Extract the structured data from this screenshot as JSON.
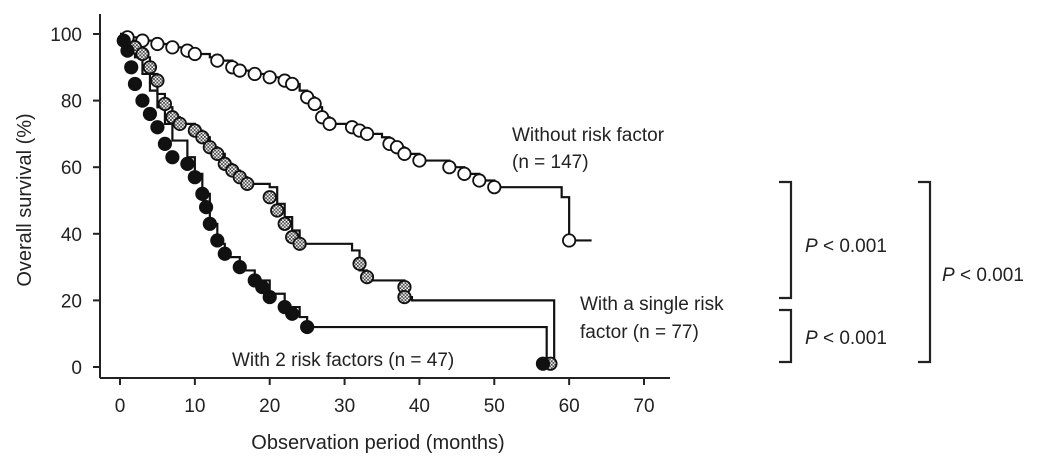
{
  "chart_data": {
    "type": "line",
    "step": true,
    "xlabel": "Observation period (months)",
    "ylabel": "Overall survival (%)",
    "xlim": [
      0,
      70
    ],
    "ylim": [
      0,
      100
    ],
    "xticks": [
      "0",
      "10",
      "20",
      "30",
      "40",
      "50",
      "60",
      "70"
    ],
    "yticks": [
      "0",
      "20",
      "40",
      "60",
      "80",
      "100"
    ],
    "grid": false,
    "series": [
      {
        "marker": "open-circle",
        "x": [
          0,
          1,
          2,
          3,
          4,
          5,
          6,
          7,
          9,
          10,
          12,
          13,
          15,
          16,
          18,
          20,
          22,
          23,
          24,
          25,
          26,
          27,
          28,
          30,
          31,
          32,
          33,
          35,
          36,
          37,
          38,
          40,
          44,
          46,
          48,
          50,
          59,
          60,
          63
        ],
        "y": [
          100,
          99,
          99,
          98,
          98,
          97,
          97,
          96,
          95,
          94,
          93,
          92,
          90,
          89,
          88,
          87,
          86,
          85,
          83,
          81,
          78,
          75,
          73,
          73,
          72,
          71,
          70,
          69,
          67,
          66,
          64,
          62,
          60,
          58,
          56,
          54,
          51,
          38,
          38
        ],
        "censored": [
          [
            1,
            99
          ],
          [
            3,
            98
          ],
          [
            5,
            97
          ],
          [
            7,
            96
          ],
          [
            9,
            95
          ],
          [
            10,
            94
          ],
          [
            13,
            92
          ],
          [
            15,
            90
          ],
          [
            16,
            89
          ],
          [
            18,
            88
          ],
          [
            20,
            87
          ],
          [
            22,
            86
          ],
          [
            23,
            85
          ],
          [
            25,
            81
          ],
          [
            26,
            79
          ],
          [
            27,
            75
          ],
          [
            28,
            73
          ],
          [
            31,
            72
          ],
          [
            32,
            71
          ],
          [
            33,
            70
          ],
          [
            36,
            67
          ],
          [
            37,
            66
          ],
          [
            38,
            64
          ],
          [
            40,
            62
          ],
          [
            44,
            60
          ],
          [
            46,
            58
          ],
          [
            48,
            56
          ],
          [
            50,
            54
          ],
          [
            60,
            38
          ]
        ]
      },
      {
        "marker": "hatched-circle",
        "x": [
          0,
          1,
          2,
          3,
          4,
          5,
          6,
          7,
          8,
          10,
          11,
          12,
          13,
          14,
          15,
          16,
          17,
          20,
          21,
          22,
          23,
          24,
          31,
          32,
          33,
          38,
          39,
          58
        ],
        "y": [
          100,
          98,
          96,
          93,
          88,
          82,
          78,
          75,
          73,
          71,
          69,
          66,
          64,
          61,
          59,
          57,
          55,
          54,
          49,
          45,
          41,
          37,
          35,
          29,
          26,
          21,
          20,
          0
        ],
        "censored": [
          [
            2,
            96
          ],
          [
            3,
            94
          ],
          [
            4,
            90
          ],
          [
            5,
            86
          ],
          [
            6,
            79
          ],
          [
            7,
            75
          ],
          [
            8,
            73
          ],
          [
            10,
            71
          ],
          [
            11,
            69
          ],
          [
            12,
            66
          ],
          [
            13,
            64
          ],
          [
            14,
            61
          ],
          [
            15,
            59
          ],
          [
            16,
            57
          ],
          [
            17,
            55
          ],
          [
            20,
            51
          ],
          [
            21,
            47
          ],
          [
            22,
            43
          ],
          [
            23,
            39
          ],
          [
            24,
            37
          ],
          [
            32,
            31
          ],
          [
            33,
            27
          ],
          [
            38,
            24
          ],
          [
            38,
            21
          ],
          [
            57.5,
            1
          ]
        ]
      },
      {
        "marker": "filled-circle",
        "x": [
          0,
          1,
          2,
          3,
          4,
          5,
          6,
          7,
          9,
          10,
          11,
          12,
          13,
          14,
          16,
          18,
          20,
          22,
          24,
          25,
          56,
          57
        ],
        "y": [
          100,
          97,
          93,
          88,
          83,
          78,
          73,
          68,
          63,
          58,
          52,
          43,
          37,
          33,
          29,
          26,
          22,
          18,
          15,
          12,
          12,
          0
        ],
        "censored": [
          [
            0.5,
            98
          ],
          [
            1,
            95
          ],
          [
            1.5,
            90
          ],
          [
            2,
            85
          ],
          [
            3,
            80
          ],
          [
            4,
            76
          ],
          [
            5,
            72
          ],
          [
            6,
            67
          ],
          [
            7,
            63
          ],
          [
            9,
            61
          ],
          [
            10,
            57
          ],
          [
            11,
            52
          ],
          [
            11.5,
            48
          ],
          [
            12,
            43
          ],
          [
            13,
            38
          ],
          [
            14,
            34
          ],
          [
            16,
            30
          ],
          [
            18,
            26
          ],
          [
            19,
            24
          ],
          [
            20,
            21
          ],
          [
            22,
            18
          ],
          [
            23,
            16
          ],
          [
            25,
            12
          ],
          [
            56.5,
            1
          ]
        ]
      }
    ],
    "annotations": [
      {
        "lines": [
          "Without risk factor",
          "(n = 147)"
        ]
      },
      {
        "lines": [
          "With a single risk",
          "factor (n = 77)"
        ]
      },
      {
        "lines": [
          "With 2 risk factors (n = 47)"
        ]
      }
    ],
    "comparisons": [
      {
        "italic": "P",
        "rest": " < 0.001"
      },
      {
        "italic": "P",
        "rest": " < 0.001"
      },
      {
        "italic": "P",
        "rest": " < 0.001"
      }
    ]
  }
}
